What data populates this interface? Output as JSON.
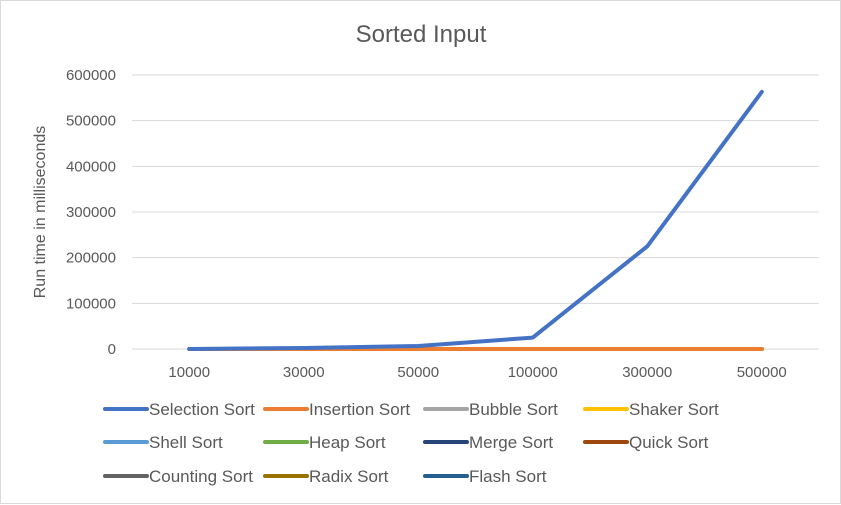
{
  "chart_data": {
    "type": "line",
    "title": "Sorted Input",
    "xlabel": "",
    "ylabel": "Run time in milliseconds",
    "categories": [
      "10000",
      "30000",
      "50000",
      "100000",
      "300000",
      "500000"
    ],
    "y_ticks": [
      "0",
      "100000",
      "200000",
      "300000",
      "400000",
      "500000",
      "600000"
    ],
    "ylim": [
      0,
      600000
    ],
    "grid": true,
    "legend_position": "bottom",
    "series": [
      {
        "name": "Selection Sort",
        "color": "#4472C4",
        "values": [
          0,
          2200,
          6500,
          25000,
          225000,
          563000
        ]
      },
      {
        "name": "Insertion Sort",
        "color": "#ED7D31",
        "values": [
          0,
          0,
          0,
          0,
          0,
          0
        ]
      },
      {
        "name": "Bubble Sort",
        "color": "#A5A5A5",
        "values": [
          0,
          0,
          0,
          0,
          0,
          0
        ]
      },
      {
        "name": "Shaker Sort",
        "color": "#FFC000",
        "values": [
          0,
          0,
          0,
          0,
          0,
          0
        ]
      },
      {
        "name": "Shell Sort",
        "color": "#5B9BD5",
        "values": [
          0,
          0,
          0,
          0,
          0,
          0
        ]
      },
      {
        "name": "Heap Sort",
        "color": "#70AD47",
        "values": [
          0,
          0,
          0,
          0,
          0,
          0
        ]
      },
      {
        "name": "Merge Sort",
        "color": "#264478",
        "values": [
          0,
          0,
          0,
          0,
          0,
          0
        ]
      },
      {
        "name": "Quick Sort",
        "color": "#9E480E",
        "values": [
          0,
          0,
          0,
          0,
          0,
          0
        ]
      },
      {
        "name": "Counting Sort",
        "color": "#636363",
        "values": [
          0,
          0,
          0,
          0,
          0,
          0
        ]
      },
      {
        "name": "Radix Sort",
        "color": "#997300",
        "values": [
          0,
          0,
          0,
          0,
          0,
          0
        ]
      },
      {
        "name": "Flash Sort",
        "color": "#255E91",
        "values": [
          0,
          0,
          0,
          0,
          0,
          0
        ]
      }
    ]
  }
}
